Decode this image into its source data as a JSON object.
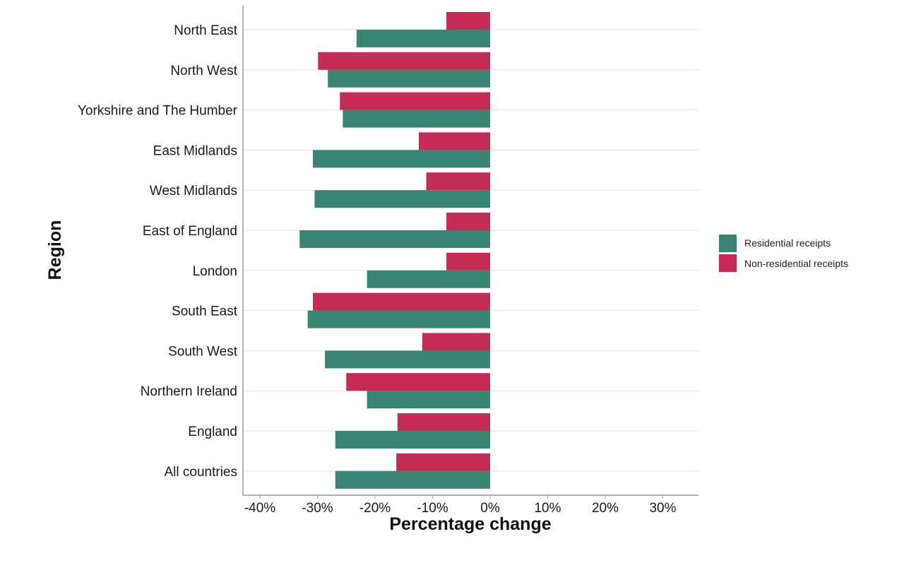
{
  "chart_data": {
    "type": "bar",
    "orientation": "horizontal",
    "xlabel": "Percentage change",
    "ylabel": "Region",
    "xlim": [
      -42,
      36
    ],
    "x_ticks": [
      {
        "value": -40,
        "label": "-40%"
      },
      {
        "value": -30,
        "label": "-30%"
      },
      {
        "value": -20,
        "label": "-20%"
      },
      {
        "value": -10,
        "label": "-10%"
      },
      {
        "value": 0,
        "label": "0%"
      },
      {
        "value": 10,
        "label": "10%"
      },
      {
        "value": 20,
        "label": "20%"
      },
      {
        "value": 30,
        "label": "30%"
      }
    ],
    "grid": "horizontal",
    "legend_position": "right",
    "categories": [
      "North East",
      "North West",
      "Yorkshire and The Humber",
      "East Midlands",
      "West Midlands",
      "East of England",
      "London",
      "South East",
      "South West",
      "Northern Ireland",
      "England",
      "All countries"
    ],
    "series": [
      {
        "name": "Residential receipts",
        "color": "#3a8571",
        "values": [
          -23.2,
          -28.2,
          -25.6,
          -30.8,
          -30.5,
          -33.1,
          -21.4,
          -31.7,
          -28.7,
          -21.4,
          -26.9,
          -26.9
        ]
      },
      {
        "name": "Non-residential receipts",
        "color": "#c42b55",
        "values": [
          -7.6,
          -29.9,
          -26.1,
          -12.4,
          -11.1,
          -7.6,
          -7.6,
          -30.8,
          -11.8,
          -25.0,
          -16.1,
          -16.3
        ]
      }
    ]
  }
}
